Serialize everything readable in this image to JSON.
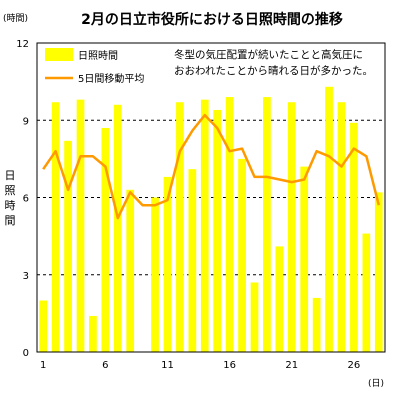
{
  "chart_data": {
    "type": "bar",
    "title": "2月の日立市役所における日照時間の推移",
    "y_unit_label": "(時間)",
    "ylabel": "日照時間",
    "x_unit_label": "(日)",
    "xlabel": "",
    "annotation": "冬型の気圧配置が続いたことと高気圧に\nおおわれたことから晴れる日が多かった。",
    "ylim": [
      0,
      12
    ],
    "yticks": [
      0,
      3,
      6,
      9,
      12
    ],
    "xlim": [
      0.5,
      28.5
    ],
    "xticks": [
      1,
      6,
      11,
      16,
      21,
      26
    ],
    "grid": "horizontal-dashed",
    "legend_position": "top-left",
    "x": [
      1,
      2,
      3,
      4,
      5,
      6,
      7,
      8,
      9,
      10,
      11,
      12,
      13,
      14,
      15,
      16,
      17,
      18,
      19,
      20,
      21,
      22,
      23,
      24,
      25,
      26,
      27,
      28
    ],
    "series": [
      {
        "name": "日照時間",
        "type": "bar",
        "color": "#ffff00",
        "values": [
          2.0,
          9.7,
          8.2,
          9.8,
          1.4,
          8.7,
          9.6,
          6.3,
          0.0,
          6.0,
          6.8,
          9.7,
          7.1,
          9.8,
          9.4,
          9.9,
          7.5,
          2.7,
          9.9,
          4.1,
          9.7,
          7.2,
          2.1,
          10.3,
          9.7,
          8.9,
          4.6,
          6.2
        ]
      },
      {
        "name": "5日間移動平均",
        "type": "line",
        "color": "#ff9900",
        "values": [
          7.1,
          7.8,
          6.3,
          7.6,
          7.6,
          7.2,
          5.2,
          6.2,
          5.7,
          5.7,
          5.9,
          7.8,
          8.6,
          9.2,
          8.7,
          7.8,
          7.9,
          6.8,
          6.8,
          6.7,
          6.6,
          6.7,
          7.8,
          7.6,
          7.2,
          7.9,
          7.6,
          5.7
        ]
      }
    ],
    "colors": {
      "bar_fill": "#ffff00",
      "line": "#ff9900",
      "grid": "#000000",
      "axis": "#000000"
    }
  }
}
